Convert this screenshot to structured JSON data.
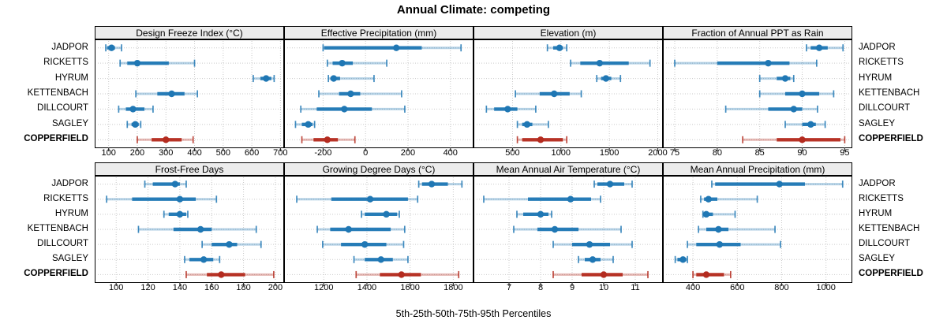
{
  "title": "Annual Climate: competing",
  "caption": "5th-25th-50th-75th-95th Percentiles",
  "sites": [
    "JADPOR",
    "RICKETTS",
    "HYRUM",
    "KETTENBACH",
    "DILLCOURT",
    "SAGLEY",
    "COPPERFIELD"
  ],
  "highlight_site": "COPPERFIELD",
  "colors": {
    "series": "#1F77B4",
    "highlight": "#B42B1F",
    "strip_bg": "#ECECEC",
    "panel_border": "#000000",
    "grid": "#C9C9C9"
  },
  "chart_data": {
    "type": "dot-interval-trellis",
    "title": "Annual Climate: competing",
    "xlabel": "5th-25th-50th-75th-95th Percentiles",
    "percentiles": [
      5,
      25,
      50,
      75,
      95
    ],
    "grid": "dotted",
    "layout": {
      "rows": 2,
      "cols": 4
    },
    "panels": [
      {
        "title": "Design Freeze Index (°C)",
        "xlim": [
          54,
          710
        ],
        "ticks": [
          100,
          200,
          300,
          400,
          500,
          600,
          700
        ],
        "series": [
          {
            "name": "JADPOR",
            "p": [
              90,
              95,
              110,
              122,
              145
            ]
          },
          {
            "name": "RICKETTS",
            "p": [
              140,
              165,
              200,
              310,
              400
            ]
          },
          {
            "name": "HYRUM",
            "p": [
              605,
              630,
              650,
              668,
              678
            ]
          },
          {
            "name": "KETTENBACH",
            "p": [
              195,
              270,
              320,
              365,
              410
            ]
          },
          {
            "name": "DILLCOURT",
            "p": [
              135,
              160,
              185,
              225,
              255
            ]
          },
          {
            "name": "SAGLEY",
            "p": [
              165,
              180,
              193,
              205,
              212
            ]
          },
          {
            "name": "COPPERFIELD",
            "p": [
              200,
              250,
              300,
              355,
              395
            ]
          }
        ]
      },
      {
        "title": "Effective Precipitation (mm)",
        "xlim": [
          -380,
          505
        ],
        "ticks": [
          -200,
          0,
          200,
          400
        ],
        "series": [
          {
            "name": "JADPOR",
            "p": [
              -200,
              -195,
              145,
              265,
              450
            ]
          },
          {
            "name": "RICKETTS",
            "p": [
              -180,
              -155,
              -110,
              -60,
              100
            ]
          },
          {
            "name": "HYRUM",
            "p": [
              -175,
              -165,
              -150,
              -120,
              40
            ]
          },
          {
            "name": "KETTENBACH",
            "p": [
              -220,
              -125,
              -70,
              -25,
              170
            ]
          },
          {
            "name": "DILLCOURT",
            "p": [
              -305,
              -230,
              -100,
              30,
              185
            ]
          },
          {
            "name": "SAGLEY",
            "p": [
              -330,
              -300,
              -270,
              -250,
              -240
            ]
          },
          {
            "name": "COPPERFIELD",
            "p": [
              -300,
              -245,
              -180,
              -130,
              -50
            ]
          }
        ]
      },
      {
        "title": "Elevation (m)",
        "xlim": [
          105,
          2045
        ],
        "ticks": [
          500,
          1000,
          1500,
          2000
        ],
        "series": [
          {
            "name": "JADPOR",
            "p": [
              860,
              920,
              985,
              1020,
              1060
            ]
          },
          {
            "name": "RICKETTS",
            "p": [
              1100,
              1200,
              1400,
              1700,
              1920
            ]
          },
          {
            "name": "HYRUM",
            "p": [
              1370,
              1415,
              1465,
              1520,
              1615
            ]
          },
          {
            "name": "KETTENBACH",
            "p": [
              530,
              780,
              930,
              1090,
              1210
            ]
          },
          {
            "name": "DILLCOURT",
            "p": [
              230,
              310,
              450,
              550,
              740
            ]
          },
          {
            "name": "SAGLEY",
            "p": [
              550,
              600,
              650,
              705,
              870
            ]
          },
          {
            "name": "COPPERFIELD",
            "p": [
              550,
              600,
              790,
              1020,
              1060
            ]
          }
        ]
      },
      {
        "title": "Fraction of Annual PPT as Rain",
        "xlim": [
          73.7,
          95.8
        ],
        "ticks": [
          75,
          80,
          85,
          90,
          95
        ],
        "series": [
          {
            "name": "JADPOR",
            "p": [
              90.5,
              91,
              92,
              93,
              94.8
            ]
          },
          {
            "name": "RICKETTS",
            "p": [
              75,
              80,
              86,
              88.5,
              91.7
            ]
          },
          {
            "name": "HYRUM",
            "p": [
              85,
              87,
              88,
              88.6,
              89
            ]
          },
          {
            "name": "KETTENBACH",
            "p": [
              85,
              88,
              90,
              92,
              93.7
            ]
          },
          {
            "name": "DILLCOURT",
            "p": [
              81,
              86,
              89,
              90,
              91.8
            ]
          },
          {
            "name": "SAGLEY",
            "p": [
              88,
              90,
              91,
              91.6,
              92.7
            ]
          },
          {
            "name": "COPPERFIELD",
            "p": [
              83,
              87,
              90,
              94.5,
              95
            ]
          }
        ]
      },
      {
        "title": "Frost-Free Days",
        "xlim": [
          87,
          205
        ],
        "ticks": [
          100,
          120,
          140,
          160,
          180,
          200
        ],
        "series": [
          {
            "name": "JADPOR",
            "p": [
              118,
              123,
              137,
              140,
              144
            ]
          },
          {
            "name": "RICKETTS",
            "p": [
              94,
              110,
              140,
              150,
              163
            ]
          },
          {
            "name": "HYRUM",
            "p": [
              130,
              133,
              140,
              144,
              145
            ]
          },
          {
            "name": "KETTENBACH",
            "p": [
              114,
              136,
              153,
              160,
              188
            ]
          },
          {
            "name": "DILLCOURT",
            "p": [
              154,
              160,
              171,
              176,
              191
            ]
          },
          {
            "name": "SAGLEY",
            "p": [
              143,
              146,
              155,
              161,
              165
            ]
          },
          {
            "name": "COPPERFIELD",
            "p": [
              144,
              157,
              166,
              181,
              199
            ]
          }
        ]
      },
      {
        "title": "Growing Degree Days (°C)",
        "xlim": [
          1020,
          1890
        ],
        "ticks": [
          1200,
          1400,
          1600,
          1800
        ],
        "series": [
          {
            "name": "JADPOR",
            "p": [
              1640,
              1655,
              1700,
              1775,
              1840
            ]
          },
          {
            "name": "RICKETTS",
            "p": [
              1075,
              1235,
              1415,
              1590,
              1635
            ]
          },
          {
            "name": "HYRUM",
            "p": [
              1375,
              1390,
              1490,
              1540,
              1550
            ]
          },
          {
            "name": "KETTENBACH",
            "p": [
              1170,
              1230,
              1315,
              1510,
              1575
            ]
          },
          {
            "name": "DILLCOURT",
            "p": [
              1195,
              1280,
              1390,
              1490,
              1570
            ]
          },
          {
            "name": "SAGLEY",
            "p": [
              1340,
              1390,
              1465,
              1520,
              1590
            ]
          },
          {
            "name": "COPPERFIELD",
            "p": [
              1350,
              1460,
              1560,
              1650,
              1825
            ]
          }
        ]
      },
      {
        "title": "Mean Annual Air Temperature (°C)",
        "xlim": [
          5.9,
          11.85
        ],
        "ticks": [
          7,
          8,
          9,
          10,
          11
        ],
        "series": [
          {
            "name": "JADPOR",
            "p": [
              9.7,
              9.8,
              10.2,
              10.65,
              10.9
            ]
          },
          {
            "name": "RICKETTS",
            "p": [
              6.2,
              7.6,
              8.95,
              9.6,
              9.9
            ]
          },
          {
            "name": "HYRUM",
            "p": [
              7.25,
              7.45,
              8.0,
              8.25,
              8.35
            ]
          },
          {
            "name": "KETTENBACH",
            "p": [
              7.15,
              7.9,
              8.45,
              9.2,
              10.55
            ]
          },
          {
            "name": "DILLCOURT",
            "p": [
              8.4,
              9.0,
              9.55,
              10.2,
              10.9
            ]
          },
          {
            "name": "SAGLEY",
            "p": [
              9.2,
              9.4,
              9.65,
              9.9,
              10.3
            ]
          },
          {
            "name": "COPPERFIELD",
            "p": [
              8.4,
              9.3,
              10.0,
              10.6,
              11.4
            ]
          }
        ]
      },
      {
        "title": "Mean Annual Precipitation (mm)",
        "xlim": [
          268,
          1115
        ],
        "ticks": [
          400,
          600,
          800,
          1000
        ],
        "series": [
          {
            "name": "JADPOR",
            "p": [
              485,
              500,
              790,
              905,
              1075
            ]
          },
          {
            "name": "RICKETTS",
            "p": [
              435,
              450,
              470,
              510,
              690
            ]
          },
          {
            "name": "HYRUM",
            "p": [
              445,
              450,
              460,
              490,
              590
            ]
          },
          {
            "name": "KETTENBACH",
            "p": [
              425,
              460,
              515,
              560,
              770
            ]
          },
          {
            "name": "DILLCOURT",
            "p": [
              375,
              415,
              520,
              615,
              795
            ]
          },
          {
            "name": "SAGLEY",
            "p": [
              320,
              330,
              355,
              370,
              375
            ]
          },
          {
            "name": "COPPERFIELD",
            "p": [
              400,
              415,
              460,
              540,
              570
            ]
          }
        ]
      }
    ]
  }
}
